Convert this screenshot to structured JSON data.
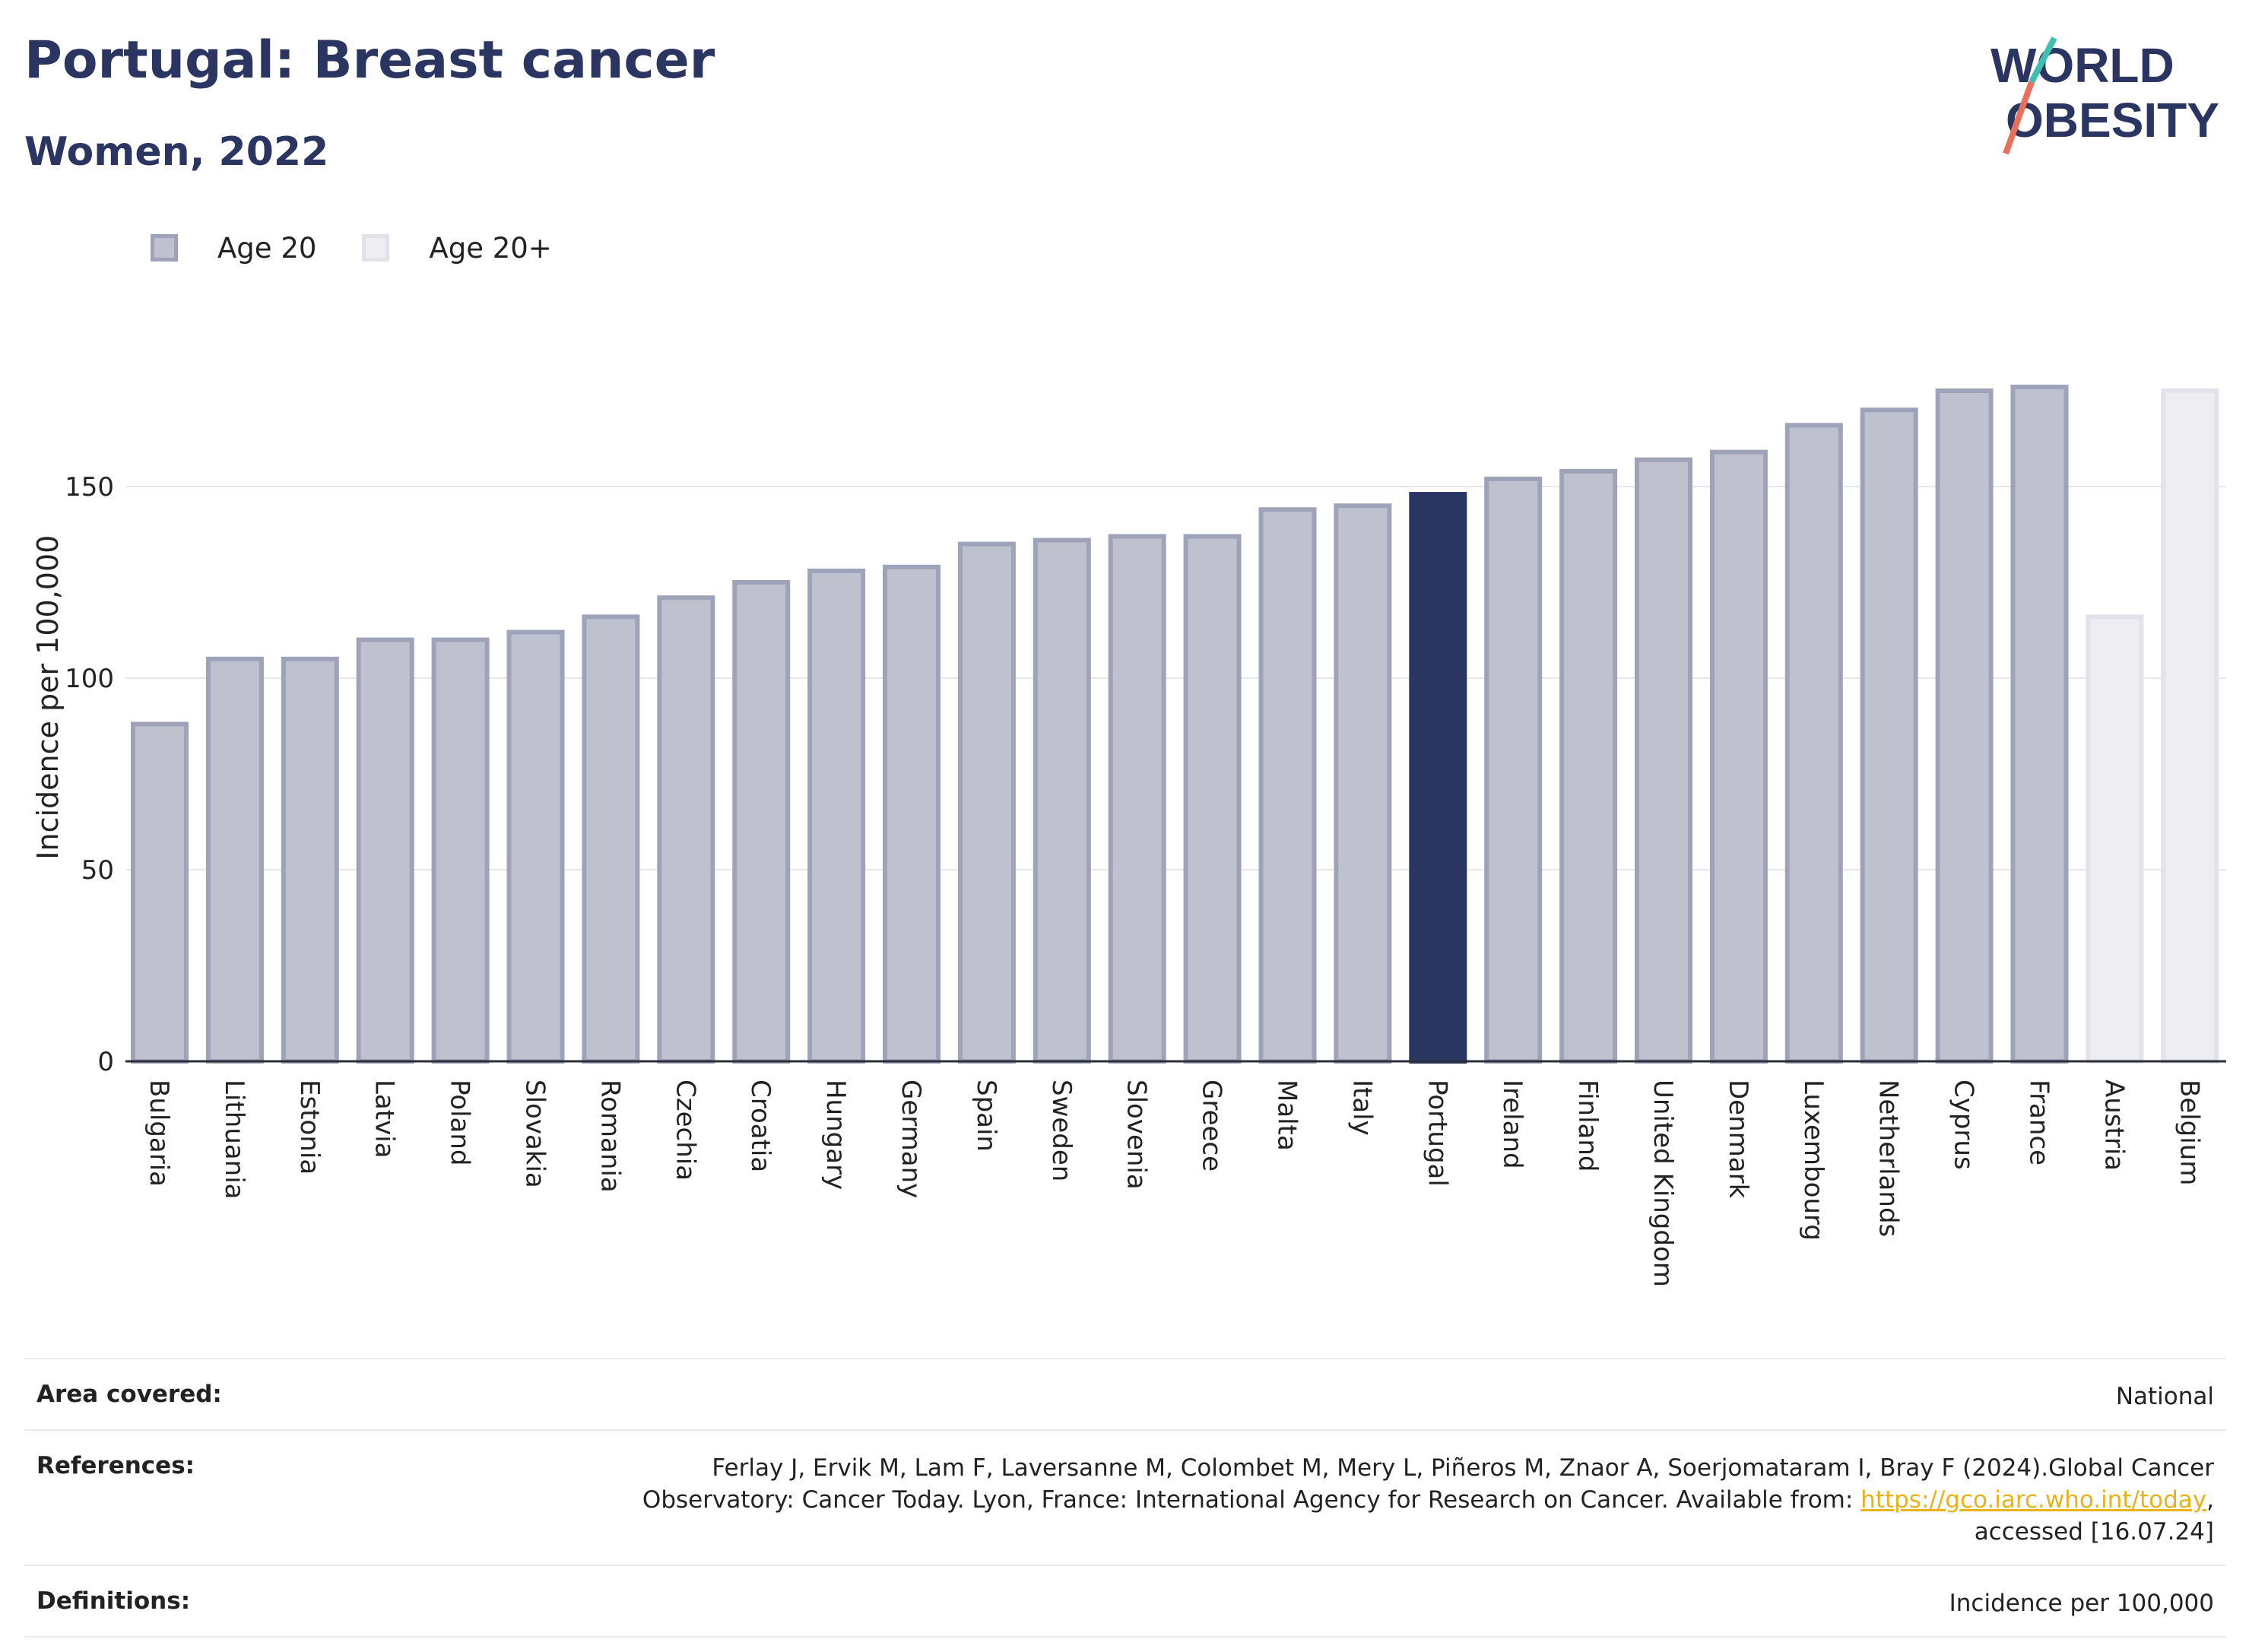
{
  "header": {
    "title": "Portugal: Breast cancer",
    "subtitle": "Women, 2022"
  },
  "logo": {
    "line1": "WORLD",
    "line2": "OBESITY"
  },
  "legend": [
    {
      "label": "Age 20",
      "color": "#bfc1cf"
    },
    {
      "label": "Age 20+",
      "color": "#eeeef2"
    }
  ],
  "colors": {
    "age20": "#bfc1cf",
    "age20_border": "#9ea3b9",
    "age20plus": "#eeeef2",
    "age20plus_border": "#e2e3ea",
    "highlight": "#2b3561"
  },
  "chart_data": {
    "type": "bar",
    "ylabel": "Incidence per 100,000",
    "xlabel": "",
    "ylim": [
      0,
      190
    ],
    "yticks": [
      0,
      50,
      100,
      150
    ],
    "grid": true,
    "highlight": "Portugal",
    "categories": [
      "Bulgaria",
      "Lithuania",
      "Estonia",
      "Latvia",
      "Poland",
      "Slovakia",
      "Romania",
      "Czechia",
      "Croatia",
      "Hungary",
      "Germany",
      "Spain",
      "Sweden",
      "Slovenia",
      "Greece",
      "Malta",
      "Italy",
      "Portugal",
      "Ireland",
      "Finland",
      "United Kingdom",
      "Denmark",
      "Luxembourg",
      "Netherlands",
      "Cyprus",
      "France",
      "Austria",
      "Belgium"
    ],
    "series": [
      {
        "name": "Age 20",
        "values": [
          88,
          105,
          105,
          110,
          110,
          112,
          116,
          121,
          125,
          128,
          129,
          135,
          136,
          137,
          137,
          144,
          145,
          148,
          152,
          154,
          157,
          159,
          166,
          170,
          175,
          176,
          null,
          null
        ]
      },
      {
        "name": "Age 20+",
        "values": [
          null,
          null,
          null,
          null,
          null,
          null,
          null,
          null,
          null,
          null,
          null,
          null,
          null,
          null,
          null,
          null,
          null,
          null,
          null,
          null,
          null,
          null,
          null,
          null,
          null,
          null,
          116,
          175
        ]
      }
    ]
  },
  "info": {
    "area_key": "Area covered:",
    "area_val": "National",
    "ref_key": "References:",
    "ref_text1": "Ferlay J, Ervik M, Lam F, Laversanne M, Colombet M, Mery L, Piñeros M, Znaor A, Soerjomataram I, Bray F (2024).Global Cancer",
    "ref_text2": "Observatory: Cancer Today. Lyon, France: International Agency for Research on Cancer. Available from: ",
    "ref_link": "https://gco.iarc.who.int/today",
    "ref_text3": ",",
    "ref_text4": "accessed [16.07.24]",
    "def_key": "Definitions:",
    "def_val": "Incidence per 100,000"
  }
}
